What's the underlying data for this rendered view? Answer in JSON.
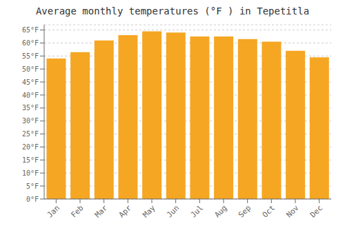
{
  "chart_data": {
    "type": "bar",
    "title": "Average monthly temperatures (°F ) in Tepetitla",
    "categories": [
      "Jan",
      "Feb",
      "Mar",
      "Apr",
      "May",
      "Jun",
      "Jul",
      "Aug",
      "Sep",
      "Oct",
      "Nov",
      "Dec"
    ],
    "values": [
      54,
      56.5,
      61,
      63,
      64.5,
      64,
      62.5,
      62.5,
      61.5,
      60.5,
      57,
      54.5
    ],
    "color": "#F5A623",
    "ylim": [
      0,
      67
    ],
    "yticks": [
      {
        "value": 0,
        "label": "0°F"
      },
      {
        "value": 5,
        "label": "5°F"
      },
      {
        "value": 10,
        "label": "10°F"
      },
      {
        "value": 15,
        "label": "15°F"
      },
      {
        "value": 20,
        "label": "20°F"
      },
      {
        "value": 25,
        "label": "25°F"
      },
      {
        "value": 30,
        "label": "30°F"
      },
      {
        "value": 35,
        "label": "35°F"
      },
      {
        "value": 40,
        "label": "40°F"
      },
      {
        "value": 45,
        "label": "45°F"
      },
      {
        "value": 50,
        "label": "50°F"
      },
      {
        "value": 55,
        "label": "55°F"
      },
      {
        "value": 60,
        "label": "60°F"
      },
      {
        "value": 65,
        "label": "65°F"
      }
    ],
    "grid": true
  }
}
